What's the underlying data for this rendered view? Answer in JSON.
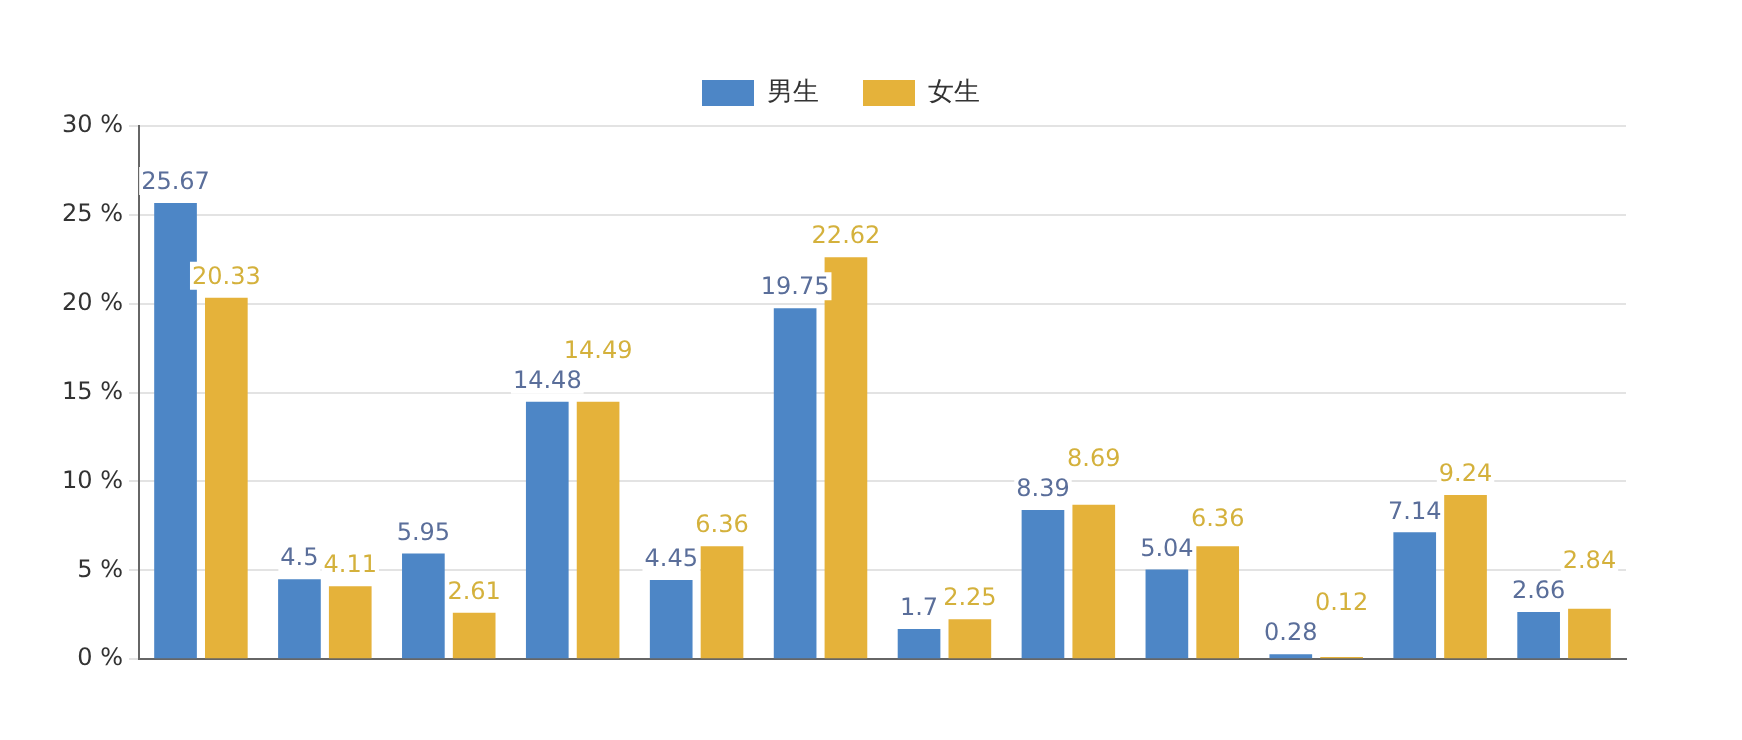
{
  "chart_data": {
    "type": "bar",
    "categories": [
      null,
      null,
      null,
      null,
      null,
      null,
      null,
      null,
      null,
      null,
      null,
      null
    ],
    "series": [
      {
        "name": "男生",
        "color": "#4d86c6",
        "values": [
          25.67,
          4.5,
          5.95,
          14.48,
          4.45,
          19.75,
          1.7,
          8.39,
          5.04,
          0.28,
          7.14,
          2.66
        ]
      },
      {
        "name": "女生",
        "color": "#e5b23a",
        "values": [
          20.33,
          4.11,
          2.61,
          14.49,
          6.36,
          22.62,
          2.25,
          8.69,
          6.36,
          0.12,
          9.24,
          2.84
        ]
      }
    ],
    "ylim": [
      0,
      30
    ],
    "yticks": [
      {
        "value": 0,
        "label": "0 %"
      },
      {
        "value": 5,
        "label": "5 %"
      },
      {
        "value": 10,
        "label": "10 %"
      },
      {
        "value": 15,
        "label": "15 %"
      },
      {
        "value": 20,
        "label": "20 %"
      },
      {
        "value": 25,
        "label": "25 %"
      },
      {
        "value": 30,
        "label": "30 %"
      }
    ],
    "grid": "y",
    "legend": "top",
    "data_labels": true
  }
}
